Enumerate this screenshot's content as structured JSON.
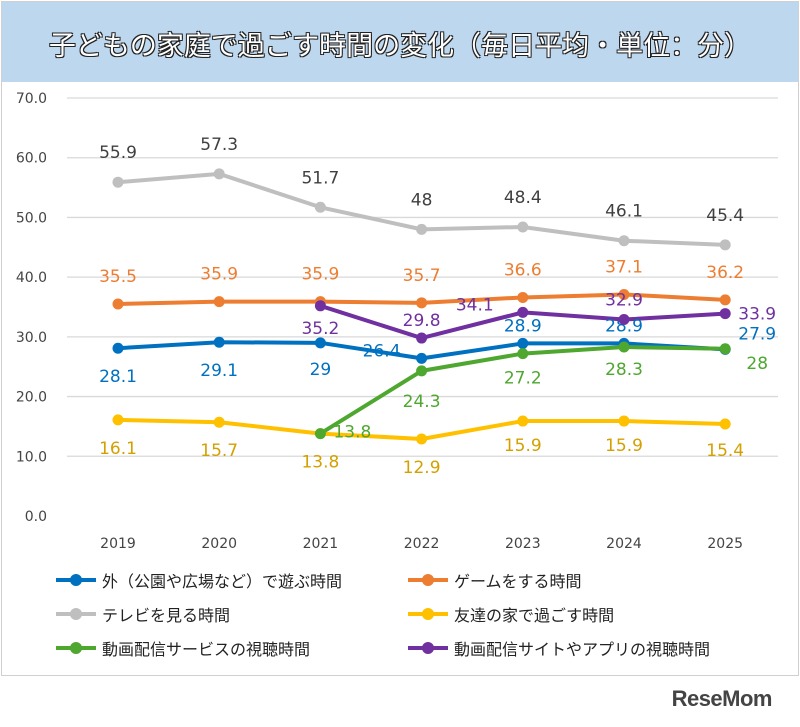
{
  "title": "子どもの家庭で過ごす時間の変化（毎日平均・単位：分）",
  "logo": "ReseMom",
  "chart_data": {
    "type": "line",
    "title": "子どもの家庭で過ごす時間の変化（毎日平均・単位：分）",
    "categories": [
      "2019",
      "2020",
      "2021",
      "2022",
      "2023",
      "2024",
      "2025"
    ],
    "ylim": [
      0,
      70
    ],
    "yticks": [
      "0.0",
      "10.0",
      "20.0",
      "30.0",
      "40.0",
      "50.0",
      "60.0",
      "70.0"
    ],
    "grid": true,
    "legend_position": "bottom",
    "series": [
      {
        "name": "外（公園や広場など）で遊ぶ時間",
        "color": "#0070c0",
        "values": [
          28.1,
          29.1,
          29.0,
          26.4,
          28.9,
          28.9,
          27.9
        ]
      },
      {
        "name": "ゲームをする時間",
        "color": "#ed7d31",
        "values": [
          35.5,
          35.9,
          35.9,
          35.7,
          36.6,
          37.1,
          36.2
        ]
      },
      {
        "name": "テレビを見る時間",
        "color": "#bfbfbf",
        "values": [
          55.9,
          57.3,
          51.7,
          48.0,
          48.4,
          46.1,
          45.4
        ]
      },
      {
        "name": "友達の家で過ごす時間",
        "color": "#ffc000",
        "values": [
          16.1,
          15.7,
          13.8,
          12.9,
          15.9,
          15.9,
          15.4
        ]
      },
      {
        "name": "動画配信サービスの視聴時間",
        "color": "#4ea72e",
        "values": [
          null,
          null,
          13.8,
          24.3,
          27.2,
          28.3,
          28.0
        ]
      },
      {
        "name": "動画配信サイトやアプリの視聴時間",
        "color": "#7030a0",
        "values": [
          null,
          null,
          35.2,
          29.8,
          34.1,
          32.9,
          33.9
        ]
      }
    ]
  }
}
